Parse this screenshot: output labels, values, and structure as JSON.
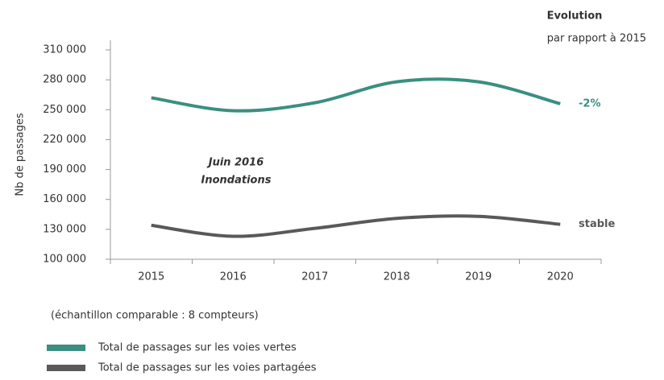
{
  "chart_data": {
    "type": "line",
    "header": "Evolution",
    "subheader": "par rapport à 2015",
    "ylabel": "Nb de passages",
    "categories": [
      "2015",
      "2016",
      "2017",
      "2018",
      "2019",
      "2020"
    ],
    "series": [
      {
        "name": "Total de passages sur les voies vertes",
        "color": "#3a8f80",
        "values": [
          262000,
          249000,
          257000,
          278000,
          278000,
          256000
        ],
        "end_label": "-2%"
      },
      {
        "name": "Total de passages sur les voies partagées",
        "color": "#595959",
        "values": [
          134000,
          123000,
          131000,
          141000,
          143000,
          135000
        ],
        "end_label": "stable"
      }
    ],
    "ylim": [
      100000,
      310000
    ],
    "yticks": [
      {
        "value": 100000,
        "label": "100 000"
      },
      {
        "value": 130000,
        "label": "130 000"
      },
      {
        "value": 160000,
        "label": "160 000"
      },
      {
        "value": 190000,
        "label": "190 000"
      },
      {
        "value": 220000,
        "label": "220 000"
      },
      {
        "value": 250000,
        "label": "250 000"
      },
      {
        "value": 280000,
        "label": "280 000"
      },
      {
        "value": 310000,
        "label": "310 000"
      }
    ],
    "event_note": [
      "Juin 2016",
      "Inondations"
    ],
    "footnote": "(échantillon comparable : 8 compteurs)"
  }
}
